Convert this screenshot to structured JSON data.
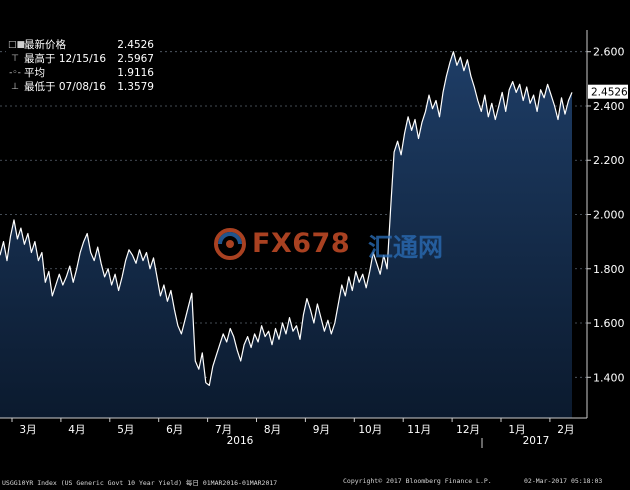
{
  "chart_data": {
    "type": "area",
    "title": "",
    "xlabel": "",
    "ylabel": "",
    "ylim": [
      1.25,
      2.68
    ],
    "yticks": [
      "1.400",
      "1.600",
      "1.800",
      "2.000",
      "2.200",
      "2.400",
      "2.600"
    ],
    "ytick_values": [
      1.4,
      1.6,
      1.8,
      2.0,
      2.2,
      2.4,
      2.6
    ],
    "last_value_label": "2.4526",
    "last_value": 2.4526,
    "x_month_labels": [
      "3月",
      "4月",
      "5月",
      "6月",
      "7月",
      "8月",
      "9月",
      "10月",
      "11月",
      "12月",
      "1月",
      "2月"
    ],
    "x_year_labels": [
      "2016",
      "2017"
    ],
    "grid": "horizontal dashed",
    "line_color": "#ffffff",
    "fill_top_color": "#1e3d66",
    "fill_bottom_color": "#0b1a2e",
    "series": [
      {
        "values": [
          1.85,
          1.9,
          1.83,
          1.92,
          1.98,
          1.91,
          1.95,
          1.89,
          1.93,
          1.86,
          1.9,
          1.83,
          1.86,
          1.75,
          1.79,
          1.7,
          1.74,
          1.78,
          1.74,
          1.77,
          1.81,
          1.75,
          1.8,
          1.86,
          1.9,
          1.93,
          1.86,
          1.83,
          1.88,
          1.82,
          1.77,
          1.8,
          1.74,
          1.78,
          1.72,
          1.77,
          1.83,
          1.87,
          1.85,
          1.82,
          1.87,
          1.83,
          1.86,
          1.8,
          1.84,
          1.77,
          1.7,
          1.74,
          1.68,
          1.72,
          1.65,
          1.59,
          1.56,
          1.61,
          1.66,
          1.71,
          1.46,
          1.43,
          1.49,
          1.38,
          1.37,
          1.44,
          1.48,
          1.52,
          1.56,
          1.53,
          1.58,
          1.55,
          1.5,
          1.46,
          1.52,
          1.55,
          1.51,
          1.56,
          1.53,
          1.59,
          1.55,
          1.57,
          1.52,
          1.58,
          1.54,
          1.6,
          1.56,
          1.62,
          1.57,
          1.59,
          1.54,
          1.63,
          1.69,
          1.65,
          1.6,
          1.67,
          1.62,
          1.57,
          1.61,
          1.56,
          1.6,
          1.67,
          1.74,
          1.7,
          1.77,
          1.72,
          1.79,
          1.75,
          1.78,
          1.73,
          1.79,
          1.86,
          1.82,
          1.78,
          1.85,
          1.8,
          2.02,
          2.23,
          2.27,
          2.22,
          2.3,
          2.36,
          2.31,
          2.35,
          2.28,
          2.34,
          2.38,
          2.44,
          2.39,
          2.42,
          2.36,
          2.45,
          2.51,
          2.56,
          2.6,
          2.55,
          2.58,
          2.53,
          2.57,
          2.51,
          2.47,
          2.42,
          2.38,
          2.44,
          2.36,
          2.41,
          2.35,
          2.4,
          2.45,
          2.38,
          2.46,
          2.49,
          2.45,
          2.48,
          2.42,
          2.47,
          2.41,
          2.44,
          2.38,
          2.46,
          2.43,
          2.48,
          2.44,
          2.4,
          2.35,
          2.43,
          2.37,
          2.42,
          2.45
        ]
      }
    ]
  },
  "legend": {
    "rows": [
      {
        "icon": "□■",
        "label": "最新价格",
        "value": "2.4526"
      },
      {
        "icon": "⊤",
        "label": "最高于 12/15/16",
        "value": "2.5967"
      },
      {
        "icon": "-◦-",
        "label": "平均",
        "value": "1.9116"
      },
      {
        "icon": "⊥",
        "label": "最低于 07/08/16",
        "value": "1.3579"
      }
    ]
  },
  "footer": {
    "left": "USGG10YR Index (US Generic Govt 10 Year Yield)  每日 01MAR2016-01MAR2017",
    "center": "Copyright© 2017 Bloomberg Finance L.P.",
    "right": "02-Mar-2017 05:18:03"
  },
  "watermark": {
    "text": "FX678",
    "cn": "汇通网",
    "icon": "fx678-swirl-logo-icon"
  }
}
